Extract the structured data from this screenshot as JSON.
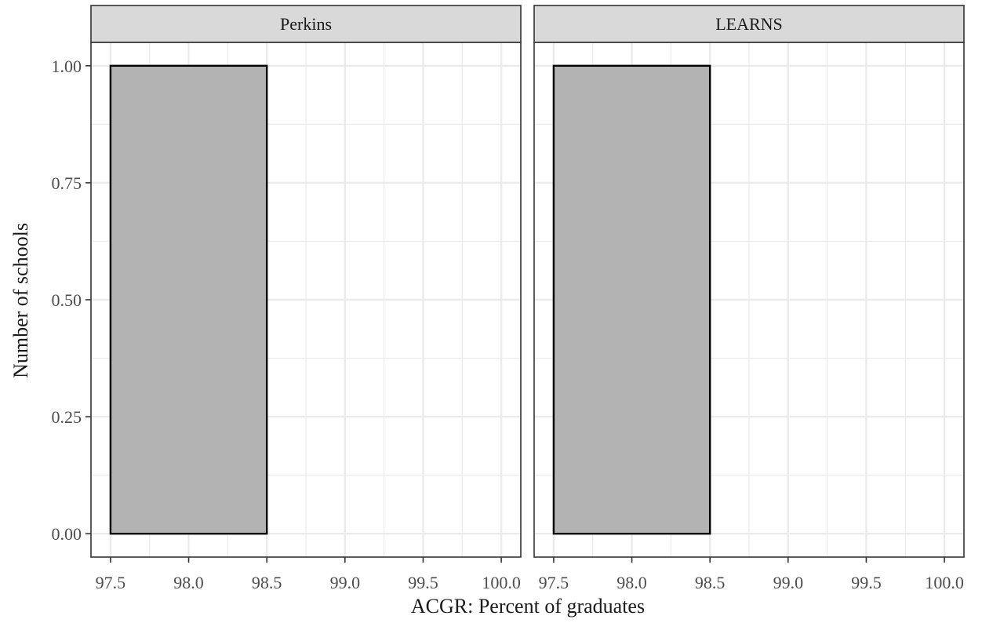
{
  "chart_data": {
    "type": "bar",
    "facets": [
      {
        "label": "Perkins",
        "bins": [
          {
            "x_start": 97.5,
            "x_end": 98.5,
            "count": 1.0
          }
        ]
      },
      {
        "label": "LEARNS",
        "bins": [
          {
            "x_start": 97.5,
            "x_end": 98.5,
            "count": 1.0
          }
        ]
      }
    ],
    "xlabel": "ACGR: Percent of graduates",
    "ylabel": "Number of schools",
    "xlim": [
      97.5,
      100.0
    ],
    "ylim": [
      0.0,
      1.0
    ],
    "x_ticks": [
      "97.5",
      "98.0",
      "98.5",
      "99.0",
      "99.5",
      "100.0"
    ],
    "y_ticks": [
      "0.00",
      "0.25",
      "0.50",
      "0.75",
      "1.00"
    ],
    "grid": true,
    "colors": {
      "bar_fill": "#b3b3b3",
      "bar_stroke": "#000000",
      "strip_fill": "#d9d9d9",
      "grid": "#ebebeb",
      "panel_border": "#333333"
    }
  }
}
